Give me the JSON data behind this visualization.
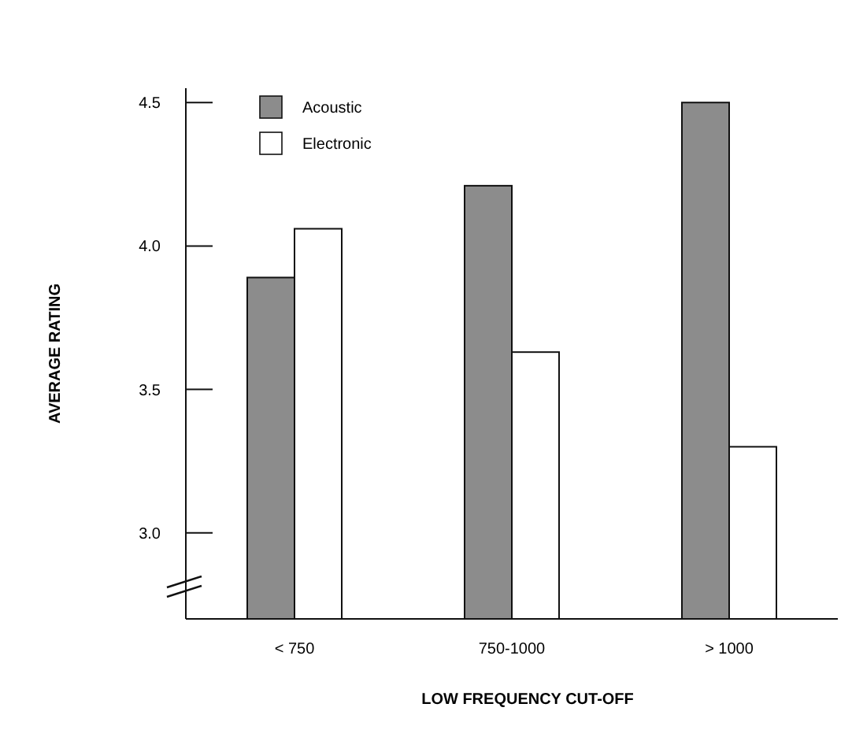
{
  "chart_data": {
    "type": "bar",
    "xlabel": "LOW FREQUENCY CUT-OFF",
    "ylabel": "AVERAGE RATING",
    "categories": [
      "< 750",
      "750-1000",
      "> 1000"
    ],
    "series": [
      {
        "name": "Acoustic",
        "color": "#8c8c8c",
        "values": [
          3.89,
          4.21,
          4.5
        ]
      },
      {
        "name": "Electronic",
        "color": "#ffffff",
        "values": [
          4.06,
          3.63,
          3.3
        ]
      }
    ],
    "ylim": [
      2.7,
      4.55
    ],
    "yticks": [
      {
        "value": 3.0,
        "label": "3.0"
      },
      {
        "value": 3.5,
        "label": "3.5"
      },
      {
        "value": 4.0,
        "label": "4.0"
      },
      4.5
    ],
    "legend": "top left",
    "grid": false
  }
}
